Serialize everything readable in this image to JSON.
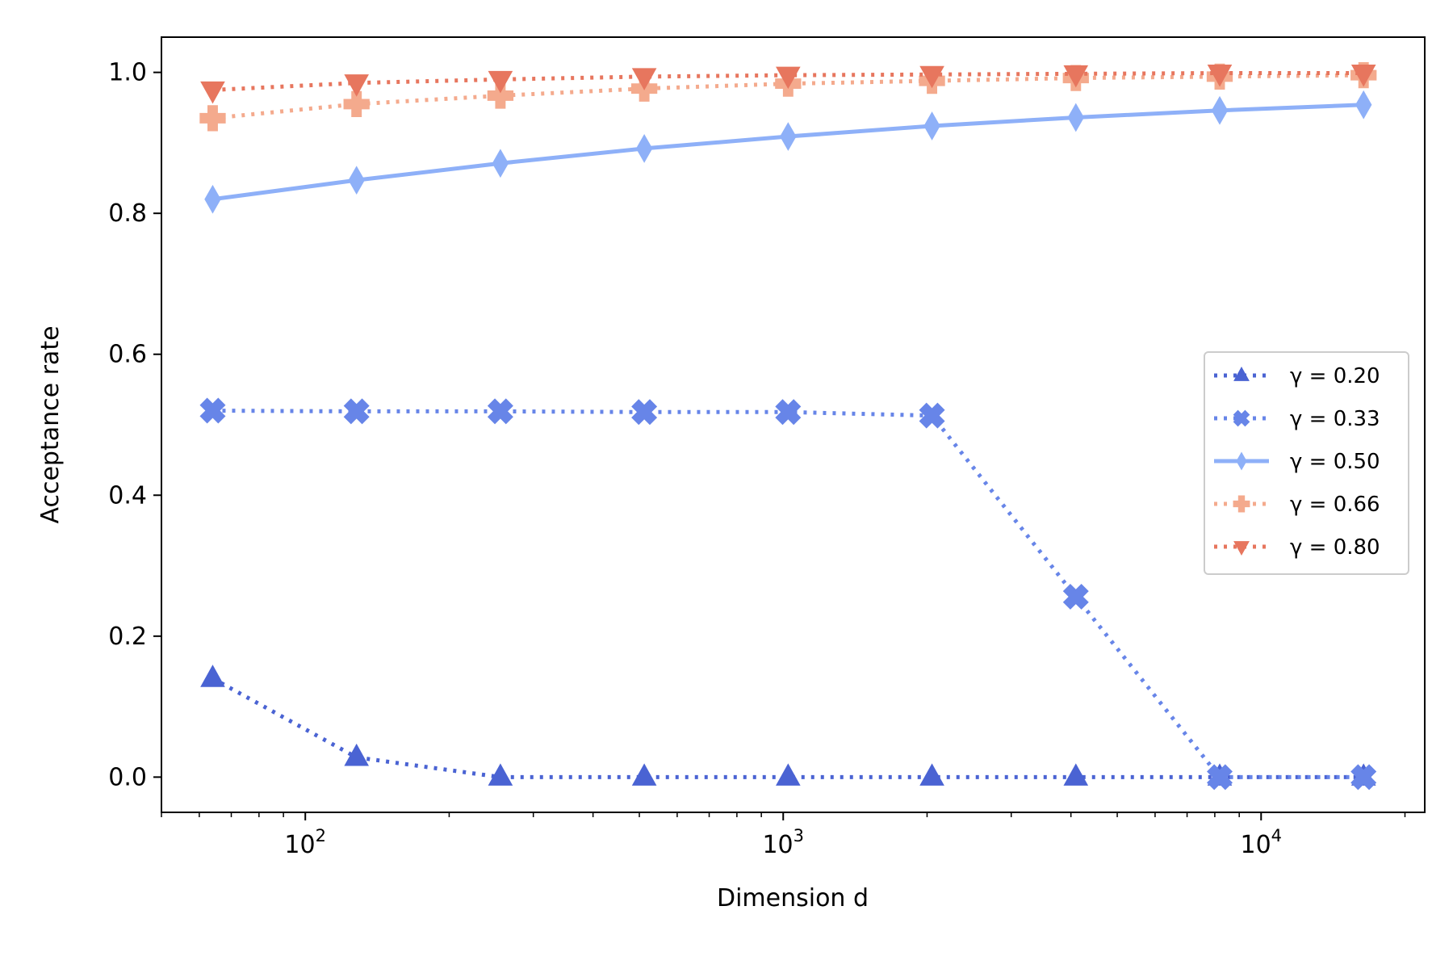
{
  "chart_data": {
    "type": "line",
    "title": "",
    "xlabel": "Dimension d",
    "ylabel": "Acceptance rate",
    "xscale": "log",
    "xlim": [
      50,
      22000
    ],
    "ylim": [
      -0.05,
      1.05
    ],
    "grid": false,
    "legend_position": "center-right",
    "x": [
      64,
      128,
      256,
      512,
      1024,
      2048,
      4096,
      8192,
      16384
    ],
    "x_ticks": [
      {
        "value": 100,
        "base": "10",
        "exp": "2"
      },
      {
        "value": 1000,
        "base": "10",
        "exp": "3"
      },
      {
        "value": 10000,
        "base": "10",
        "exp": "4"
      }
    ],
    "y_ticks": [
      "0.0",
      "0.2",
      "0.4",
      "0.6",
      "0.8",
      "1.0"
    ],
    "series": [
      {
        "name": "γ = 0.20",
        "color": "#4a63d3",
        "line": "dotted",
        "marker": "triangle-up",
        "values": [
          0.14,
          0.028,
          0.0,
          0.0,
          0.0,
          0.0,
          0.0,
          0.0,
          0.0
        ]
      },
      {
        "name": "γ = 0.33",
        "color": "#6785e8",
        "line": "dotted",
        "marker": "x-filled",
        "values": [
          0.52,
          0.519,
          0.519,
          0.518,
          0.518,
          0.513,
          0.256,
          0.0,
          0.0
        ]
      },
      {
        "name": "γ = 0.50",
        "color": "#8eb0f8",
        "line": "solid",
        "marker": "thin-diamond",
        "values": [
          0.82,
          0.847,
          0.871,
          0.892,
          0.909,
          0.924,
          0.936,
          0.946,
          0.954
        ]
      },
      {
        "name": "γ = 0.66",
        "color": "#f4aa8d",
        "line": "dotted",
        "marker": "plus-filled",
        "values": [
          0.935,
          0.955,
          0.967,
          0.977,
          0.984,
          0.988,
          0.992,
          0.994,
          0.996
        ]
      },
      {
        "name": "γ = 0.80",
        "color": "#e7765e",
        "line": "dotted",
        "marker": "triangle-down",
        "values": [
          0.975,
          0.985,
          0.99,
          0.994,
          0.996,
          0.997,
          0.998,
          0.999,
          0.999
        ]
      }
    ]
  }
}
